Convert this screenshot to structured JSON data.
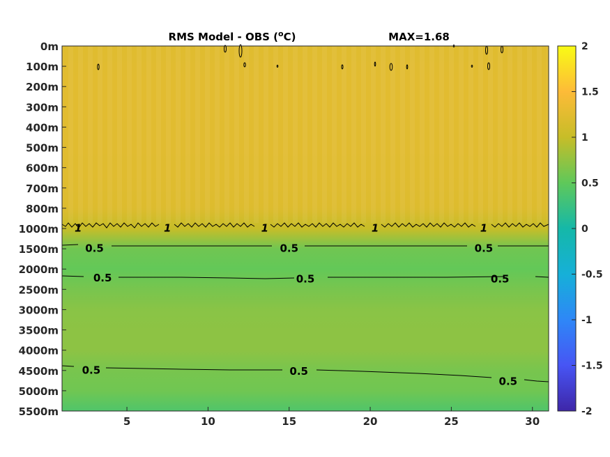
{
  "chart_data": {
    "type": "heatmap",
    "title": "RMS Model - OBS (°C)",
    "title_main": "RMS Model - OBS (",
    "title_sup": "o",
    "title_end": "C)",
    "max_annotation": "MAX=1.68",
    "x_ticks": [
      5,
      10,
      15,
      20,
      25,
      30
    ],
    "xlim": [
      1,
      31
    ],
    "depth_labels": [
      "0m",
      "100m",
      "200m",
      "300m",
      "400m",
      "500m",
      "600m",
      "700m",
      "800m",
      "1000m",
      "1500m",
      "2000m",
      "2500m",
      "3000m",
      "3500m",
      "4000m",
      "4500m",
      "5000m",
      "5500m"
    ],
    "row_values": [
      1.22,
      1.24,
      1.25,
      1.25,
      1.24,
      1.24,
      1.23,
      1.22,
      1.2,
      1.0,
      0.58,
      0.52,
      0.62,
      0.7,
      0.72,
      0.72,
      0.62,
      0.58,
      0.4
    ],
    "colorbar": {
      "ticks": [
        2,
        1.5,
        1,
        0.5,
        0,
        -0.5,
        -1,
        -1.5,
        -2
      ],
      "tick_labels": [
        "2",
        "1.5",
        "1",
        "0.5",
        "0",
        "-0.5",
        "-1",
        "-1.5",
        "-2"
      ],
      "clim": [
        -2,
        2
      ]
    },
    "contour_labels": [
      {
        "text": "1",
        "x": 2.0,
        "depth_index": 8.95
      },
      {
        "text": "1",
        "x": 7.5,
        "depth_index": 8.95
      },
      {
        "text": "1",
        "x": 13.5,
        "depth_index": 8.95
      },
      {
        "text": "1",
        "x": 20.3,
        "depth_index": 8.95
      },
      {
        "text": "1",
        "x": 27.0,
        "depth_index": 8.95
      },
      {
        "text": "0.5",
        "x": 3.0,
        "depth_index": 9.95
      },
      {
        "text": "0.5",
        "x": 15.0,
        "depth_index": 9.95
      },
      {
        "text": "0.5",
        "x": 27.0,
        "depth_index": 9.95
      },
      {
        "text": "0.5",
        "x": 3.5,
        "depth_index": 11.4
      },
      {
        "text": "0.5",
        "x": 16.0,
        "depth_index": 11.45
      },
      {
        "text": "0.5",
        "x": 28.0,
        "depth_index": 11.45
      },
      {
        "text": "0.5",
        "x": 2.8,
        "depth_index": 15.95
      },
      {
        "text": "0.5",
        "x": 15.6,
        "depth_index": 16.0
      },
      {
        "text": "0.5",
        "x": 28.5,
        "depth_index": 16.5
      }
    ]
  }
}
